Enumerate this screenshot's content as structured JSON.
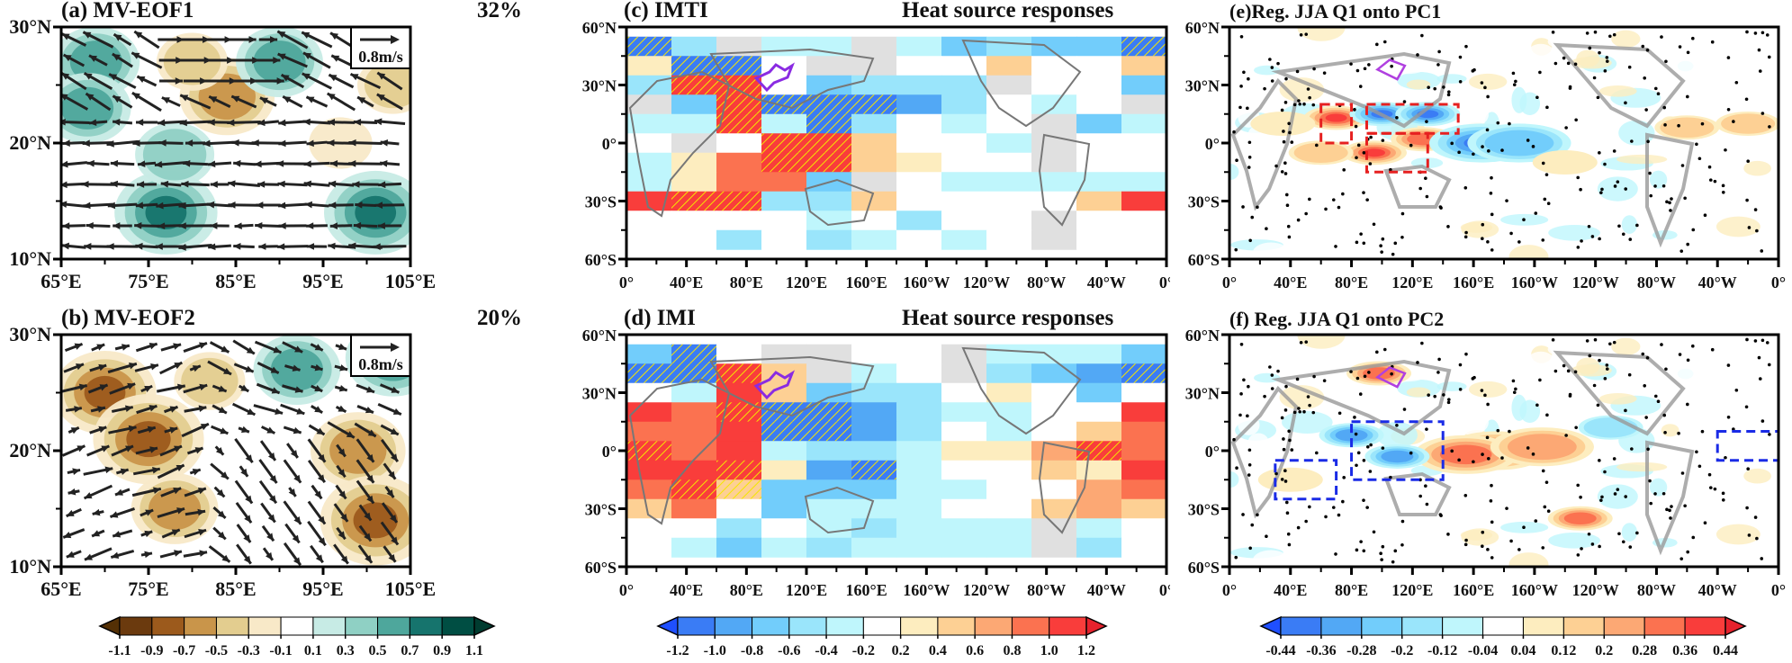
{
  "chart_data": [
    {
      "id": "a",
      "type": "heatmap",
      "title": "(a) MV-EOF1",
      "annotation": "32%",
      "vector_reference": "0.8m/s",
      "xlabel": "",
      "ylabel": "",
      "x_ticks": [
        "65°E",
        "75°E",
        "85°E",
        "95°E",
        "105°E"
      ],
      "y_ticks": [
        "30°N",
        "20°N",
        "10°N"
      ],
      "xlim": [
        65,
        105
      ],
      "ylim": [
        10,
        30
      ],
      "description": "Shaded moisture/precip EOF with wind vectors; brown negative, teal positive",
      "blobs": [
        {
          "lon": 69,
          "lat": 27,
          "v": 0.5
        },
        {
          "lon": 68,
          "lat": 23,
          "v": 0.5
        },
        {
          "lon": 77,
          "lat": 14,
          "v": 0.7
        },
        {
          "lon": 78,
          "lat": 19,
          "v": 0.4
        },
        {
          "lon": 84,
          "lat": 24,
          "v": -0.6
        },
        {
          "lon": 80,
          "lat": 27,
          "v": -0.3
        },
        {
          "lon": 90,
          "lat": 27,
          "v": 0.5
        },
        {
          "lon": 101,
          "lat": 14,
          "v": 0.7
        },
        {
          "lon": 103,
          "lat": 25,
          "v": -0.3
        },
        {
          "lon": 97,
          "lat": 20,
          "v": -0.2
        }
      ]
    },
    {
      "id": "b",
      "type": "heatmap",
      "title": "(b) MV-EOF2",
      "annotation": "20%",
      "vector_reference": "0.8m/s",
      "x_ticks": [
        "65°E",
        "75°E",
        "85°E",
        "95°E",
        "105°E"
      ],
      "y_ticks": [
        "30°N",
        "20°N",
        "10°N"
      ],
      "xlim": [
        65,
        105
      ],
      "ylim": [
        10,
        30
      ],
      "blobs": [
        {
          "lon": 70,
          "lat": 25,
          "v": -0.7
        },
        {
          "lon": 75,
          "lat": 21,
          "v": -0.8
        },
        {
          "lon": 78,
          "lat": 15,
          "v": -0.5
        },
        {
          "lon": 82,
          "lat": 26,
          "v": -0.3
        },
        {
          "lon": 92,
          "lat": 27,
          "v": 0.5
        },
        {
          "lon": 103,
          "lat": 28,
          "v": 0.6
        },
        {
          "lon": 99,
          "lat": 20,
          "v": -0.6
        },
        {
          "lon": 101,
          "lat": 14,
          "v": -0.8
        }
      ]
    },
    {
      "id": "c",
      "type": "heatmap",
      "title": "(c) IMTI",
      "subtitle": "Heat source responses",
      "x_ticks": [
        "0°",
        "40°E",
        "80°E",
        "120°E",
        "160°E",
        "160°W",
        "120°W",
        "80°W",
        "40°W",
        "0°"
      ],
      "y_ticks": [
        "60°N",
        "30°N",
        "0°",
        "30°S",
        "60°S"
      ],
      "grid_lon_start": 0,
      "grid_lon_step": 30,
      "grid_lat_start": 60,
      "grid_lat_step": -15,
      "rows_note": "values per 30°x15° box; null = land/grey; hatched = significant",
      "values": [
        [
          -1.2,
          -0.6,
          null,
          -0.4,
          -0.4,
          null,
          -0.4,
          -0.8,
          -0.6,
          -0.8,
          -0.8,
          -1.2
        ],
        [
          0.4,
          -1.2,
          -1.2,
          0.2,
          null,
          null,
          0.2,
          0,
          0.6,
          0.2,
          0,
          0.6
        ],
        [
          -0.6,
          1.2,
          1.2,
          0.2,
          -0.8,
          -0.6,
          -0.6,
          -0.6,
          null,
          0.2,
          0,
          -0.8
        ],
        [
          null,
          -0.8,
          1.2,
          -1.2,
          -1.2,
          -1.2,
          -1.0,
          -0.6,
          0,
          -0.4,
          0,
          null
        ],
        [
          -0.4,
          -0.4,
          1.2,
          -0.4,
          -1.2,
          -0.6,
          0,
          -0.4,
          0,
          null,
          -0.8,
          -0.4
        ],
        [
          0,
          null,
          0.2,
          1.2,
          1.2,
          0.6,
          0.2,
          0.2,
          -0.4,
          null,
          0,
          0
        ],
        [
          -0.4,
          0.4,
          1.0,
          1.2,
          1.2,
          0.6,
          0.4,
          0,
          0.2,
          null,
          0,
          0
        ],
        [
          -0.4,
          0.4,
          1.0,
          1.0,
          -0.8,
          null,
          0,
          -0.4,
          -0.4,
          -0.4,
          -0.4,
          -0.4
        ],
        [
          1.2,
          1.2,
          1.2,
          -0.6,
          -0.6,
          0.6,
          0.2,
          0,
          0,
          0.2,
          0.6,
          1.2
        ],
        [
          0,
          0.2,
          0,
          0,
          -0.4,
          0,
          -0.6,
          0,
          0,
          null,
          0.2,
          0
        ],
        [
          0,
          0,
          -0.6,
          0,
          -0.6,
          -0.4,
          0,
          -0.4,
          0,
          null,
          0,
          0
        ]
      ],
      "hatched": [
        [
          0,
          0
        ],
        [
          1,
          1
        ],
        [
          1,
          2
        ],
        [
          2,
          1
        ],
        [
          2,
          2
        ],
        [
          3,
          2
        ],
        [
          3,
          3
        ],
        [
          3,
          4
        ],
        [
          3,
          5
        ],
        [
          4,
          2
        ],
        [
          4,
          4
        ],
        [
          5,
          3
        ],
        [
          5,
          4
        ],
        [
          6,
          3
        ],
        [
          6,
          4
        ],
        [
          8,
          1
        ],
        [
          8,
          2
        ],
        [
          0,
          11
        ]
      ]
    },
    {
      "id": "d",
      "type": "heatmap",
      "title": "(d) IMI",
      "subtitle": "Heat source responses",
      "x_ticks": [
        "0°",
        "40°E",
        "80°E",
        "120°E",
        "160°E",
        "160°W",
        "120°W",
        "80°W",
        "40°W",
        "0°"
      ],
      "y_ticks": [
        "60°N",
        "30°N",
        "0°",
        "30°S",
        "60°S"
      ],
      "values": [
        [
          -0.8,
          -1.2,
          0.2,
          null,
          null,
          0.2,
          0,
          null,
          -0.4,
          -0.4,
          -0.4,
          -0.8
        ],
        [
          -1.2,
          -1.2,
          1.2,
          0.6,
          null,
          -0.4,
          0,
          null,
          -0.6,
          -0.8,
          -1.0,
          -1.2
        ],
        [
          0.2,
          -0.4,
          1.2,
          0.6,
          -0.8,
          -0.6,
          -0.6,
          0,
          0.4,
          0.2,
          -0.8,
          0.2
        ],
        [
          1.2,
          1.0,
          1.2,
          -1.2,
          -1.2,
          -1.0,
          -0.6,
          -0.4,
          -0.4,
          0,
          0.2,
          1.2
        ],
        [
          1.0,
          1.0,
          1.2,
          -1.2,
          -1.2,
          -1.0,
          -0.6,
          0,
          -0.4,
          0.2,
          0.6,
          1.0
        ],
        [
          1.2,
          1.0,
          1.2,
          -0.4,
          -0.6,
          -0.6,
          -0.4,
          0.4,
          0.4,
          0.8,
          1.2,
          1.0
        ],
        [
          1.2,
          1.2,
          1.2,
          0.4,
          -1.0,
          -1.2,
          -0.4,
          0,
          0.2,
          0.6,
          0.4,
          1.2
        ],
        [
          1.0,
          1.2,
          0.6,
          -0.8,
          -0.8,
          -0.8,
          -0.4,
          -0.4,
          0,
          0.2,
          0.8,
          1.0
        ],
        [
          0.6,
          1.0,
          0.2,
          -0.8,
          -0.4,
          -0.4,
          -0.4,
          0,
          0,
          0.6,
          0.8,
          0.6
        ],
        [
          0,
          0,
          -0.6,
          0,
          -0.4,
          -0.6,
          -0.4,
          -0.4,
          -0.4,
          null,
          -0.4,
          0
        ],
        [
          0,
          -0.4,
          -0.8,
          -0.4,
          -0.6,
          -0.4,
          -0.4,
          -0.4,
          -0.4,
          null,
          -0.6,
          0
        ]
      ],
      "hatched": [
        [
          0,
          1
        ],
        [
          1,
          0
        ],
        [
          1,
          1
        ],
        [
          1,
          2
        ],
        [
          3,
          2
        ],
        [
          3,
          3
        ],
        [
          3,
          4
        ],
        [
          4,
          3
        ],
        [
          4,
          4
        ],
        [
          5,
          0
        ],
        [
          6,
          2
        ],
        [
          6,
          5
        ],
        [
          7,
          1
        ],
        [
          7,
          2
        ],
        [
          5,
          10
        ],
        [
          1,
          11
        ]
      ]
    },
    {
      "id": "e",
      "type": "heatmap",
      "title": "(e)Reg. JJA Q1 onto PC1",
      "x_ticks": [
        "0°",
        "40°E",
        "80°E",
        "120°E",
        "160°E",
        "160°W",
        "120°W",
        "80°W",
        "40°W",
        "0°"
      ],
      "y_ticks": [
        "60°N",
        "30°N",
        "0°",
        "30°S",
        "60°S"
      ],
      "blobs": [
        {
          "lon": 70,
          "lat": 13,
          "v": 0.4
        },
        {
          "lon": 100,
          "lat": 15,
          "v": -0.4
        },
        {
          "lon": 130,
          "lat": 15,
          "v": -0.44
        },
        {
          "lon": 95,
          "lat": -5,
          "v": 0.44
        },
        {
          "lon": 127,
          "lat": 2,
          "v": 0.36
        },
        {
          "lon": 165,
          "lat": 0,
          "v": -0.4
        },
        {
          "lon": 190,
          "lat": 0,
          "v": -0.28
        },
        {
          "lon": 300,
          "lat": 8,
          "v": 0.2
        },
        {
          "lon": 340,
          "lat": 10,
          "v": 0.2
        },
        {
          "lon": 220,
          "lat": -10,
          "v": 0.12
        },
        {
          "lon": 60,
          "lat": -5,
          "v": 0.2
        },
        {
          "lon": 35,
          "lat": 10,
          "v": 0.12
        }
      ],
      "boxes_color": "#e62020",
      "boxes": [
        [
          60,
          0,
          80,
          20
        ],
        [
          90,
          5,
          150,
          20
        ],
        [
          90,
          -15,
          130,
          5
        ]
      ]
    },
    {
      "id": "f",
      "type": "heatmap",
      "title": "(f) Reg. JJA Q1 onto PC2",
      "x_ticks": [
        "0°",
        "40°E",
        "80°E",
        "120°E",
        "160°E",
        "160°W",
        "120°W",
        "80°W",
        "40°W",
        "0°"
      ],
      "y_ticks": [
        "60°N",
        "30°N",
        "0°",
        "30°S",
        "60°S"
      ],
      "blobs": [
        {
          "lon": 175,
          "lat": 0,
          "v": 0.44
        },
        {
          "lon": 155,
          "lat": -2,
          "v": 0.36
        },
        {
          "lon": 205,
          "lat": 2,
          "v": 0.28
        },
        {
          "lon": 110,
          "lat": -3,
          "v": -0.36
        },
        {
          "lon": 80,
          "lat": 8,
          "v": -0.3
        },
        {
          "lon": 98,
          "lat": 40,
          "v": 0.3
        },
        {
          "lon": 230,
          "lat": -35,
          "v": 0.3
        },
        {
          "lon": 250,
          "lat": 12,
          "v": -0.2
        },
        {
          "lon": 40,
          "lat": -15,
          "v": 0.12
        }
      ],
      "boxes_color": "#1a2be6",
      "boxes": [
        [
          30,
          -25,
          70,
          -5
        ],
        [
          80,
          -15,
          140,
          15
        ],
        [
          320,
          -5,
          360,
          10
        ]
      ]
    }
  ],
  "colorbars": {
    "left": {
      "labels": [
        "-1.1",
        "-0.9",
        "-0.7",
        "-0.5",
        "-0.3",
        "-0.1",
        "0.1",
        "0.3",
        "0.5",
        "0.7",
        "0.9",
        "1.1"
      ],
      "colors": [
        "#543005",
        "#6b3a0e",
        "#9c5a1c",
        "#c9954a",
        "#e3cd8f",
        "#f8e9c8",
        "#ffffff",
        "#c7ebe5",
        "#8fd0c4",
        "#4ea79c",
        "#16746d",
        "#004e43",
        "#003c30"
      ]
    },
    "middle": {
      "labels": [
        "-1.2",
        "-1.0",
        "-0.8",
        "-0.6",
        "-0.4",
        "-0.2",
        "0.2",
        "0.4",
        "0.6",
        "0.8",
        "1.0",
        "1.2"
      ],
      "colors": [
        "#1f4fff",
        "#3a7cf5",
        "#52a8f5",
        "#72cdfb",
        "#9ae5fb",
        "#bff6fc",
        "#ffffff",
        "#fdedbf",
        "#fdd094",
        "#fca874",
        "#fb7250",
        "#f93d3b",
        "#e6222d"
      ]
    },
    "right": {
      "labels": [
        "-0.44",
        "-0.36",
        "-0.28",
        "-0.2",
        "-0.12",
        "-0.04",
        "0.04",
        "0.12",
        "0.2",
        "0.28",
        "0.36",
        "0.44"
      ],
      "colors": [
        "#1f4fff",
        "#3a7cf5",
        "#52a8f5",
        "#72cdfb",
        "#9ae5fb",
        "#bff6fc",
        "#ffffff",
        "#fdedbf",
        "#fdd094",
        "#fca874",
        "#fb7250",
        "#f93d3b",
        "#e6222d"
      ]
    }
  }
}
